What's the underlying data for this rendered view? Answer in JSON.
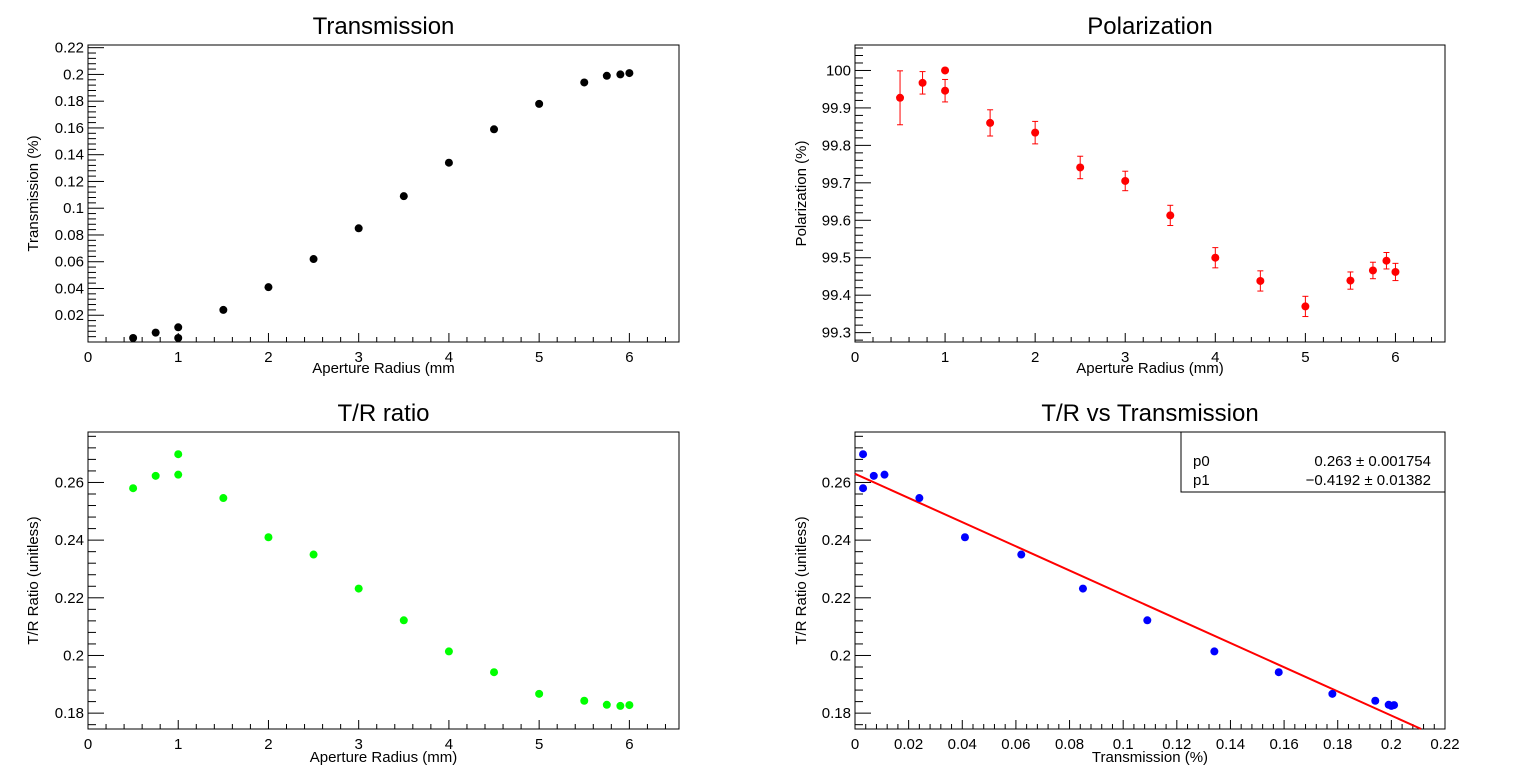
{
  "chart_data": [
    {
      "type": "scatter",
      "title": "Transmission",
      "xlabel": "Aperture Radius (mm",
      "ylabel": "Transmission (%)",
      "xlim": [
        0,
        6.55
      ],
      "ylim": [
        0.0,
        0.222
      ],
      "xticks": [
        "0",
        "1",
        "2",
        "3",
        "4",
        "5",
        "6"
      ],
      "yticks": [
        "0.02",
        "0.04",
        "0.06",
        "0.08",
        "0.1",
        "0.12",
        "0.14",
        "0.16",
        "0.18",
        "0.2",
        "0.22"
      ],
      "color": "#000000",
      "series": [
        {
          "x": [
            0.5,
            0.75,
            1.0,
            1.0,
            1.5,
            2.0,
            2.5,
            3.0,
            3.5,
            4.0,
            4.5,
            5.0,
            5.5,
            5.75,
            5.9,
            6.0
          ],
          "y": [
            0.003,
            0.007,
            0.003,
            0.011,
            0.024,
            0.041,
            0.062,
            0.085,
            0.109,
            0.134,
            0.159,
            0.178,
            0.194,
            0.199,
            0.2,
            0.201
          ]
        }
      ]
    },
    {
      "type": "scatter",
      "title": "Polarization",
      "xlabel": "Aperture Radius (mm)",
      "ylabel": "Polarization (%)",
      "xlim": [
        0,
        6.55
      ],
      "ylim": [
        99.275,
        100.068
      ],
      "xticks": [
        "0",
        "1",
        "2",
        "3",
        "4",
        "5",
        "6"
      ],
      "yticks": [
        "99.3",
        "99.4",
        "99.5",
        "99.6",
        "99.7",
        "99.8",
        "99.9",
        "100"
      ],
      "color": "#ff0000",
      "series": [
        {
          "x": [
            0.5,
            0.75,
            1.0,
            1.0,
            1.5,
            2.0,
            2.5,
            3.0,
            3.5,
            4.0,
            4.5,
            5.0,
            5.5,
            5.75,
            5.9,
            6.0
          ],
          "y": [
            99.927,
            99.967,
            99.946,
            100.0,
            99.86,
            99.834,
            99.741,
            99.705,
            99.613,
            99.5,
            99.438,
            99.37,
            99.439,
            99.466,
            99.492,
            99.462
          ],
          "err": [
            0.072,
            0.03,
            0.03,
            0.0,
            0.035,
            0.03,
            0.03,
            0.026,
            0.027,
            0.027,
            0.027,
            0.027,
            0.023,
            0.022,
            0.022,
            0.023
          ]
        }
      ]
    },
    {
      "type": "scatter",
      "title": "T/R ratio",
      "xlabel": "Aperture Radius (mm)",
      "ylabel": "T/R Ratio (unitless)",
      "xlim": [
        0,
        6.55
      ],
      "ylim": [
        0.1745,
        0.2775
      ],
      "xticks": [
        "0",
        "1",
        "2",
        "3",
        "4",
        "5",
        "6"
      ],
      "yticks": [
        "0.18",
        "0.2",
        "0.22",
        "0.24",
        "0.26"
      ],
      "color": "#00ff00",
      "series": [
        {
          "x": [
            0.5,
            0.75,
            1.0,
            1.0,
            1.5,
            2.0,
            2.5,
            3.0,
            3.5,
            4.0,
            4.5,
            5.0,
            5.5,
            5.75,
            5.9,
            6.0
          ],
          "y": [
            0.258,
            0.2623,
            0.2627,
            0.2698,
            0.2546,
            0.241,
            0.235,
            0.2232,
            0.2122,
            0.2014,
            0.1942,
            0.1867,
            0.1843,
            0.1829,
            0.1825,
            0.1828
          ]
        }
      ]
    },
    {
      "type": "scatter",
      "title": "T/R vs Transmission",
      "xlabel": "Transmission (%)",
      "ylabel": "T/R Ratio (unitless)",
      "xlim": [
        0,
        0.22
      ],
      "ylim": [
        0.1745,
        0.2775
      ],
      "xticks": [
        "0",
        "0.02",
        "0.04",
        "0.06",
        "0.08",
        "0.1",
        "0.12",
        "0.14",
        "0.16",
        "0.18",
        "0.2",
        "0.22"
      ],
      "yticks": [
        "0.18",
        "0.2",
        "0.22",
        "0.24",
        "0.26"
      ],
      "color": "#0000ff",
      "fit_color": "#ff0000",
      "series": [
        {
          "x": [
            0.003,
            0.003,
            0.007,
            0.011,
            0.024,
            0.041,
            0.062,
            0.085,
            0.109,
            0.134,
            0.158,
            0.178,
            0.194,
            0.199,
            0.2,
            0.201
          ],
          "y": [
            0.2698,
            0.258,
            0.2623,
            0.2627,
            0.2546,
            0.241,
            0.235,
            0.2232,
            0.2122,
            0.2014,
            0.1942,
            0.1867,
            0.1843,
            0.1829,
            0.1825,
            0.1828
          ]
        }
      ],
      "fit": {
        "p0": 0.263,
        "p1": -0.4192,
        "stats": [
          {
            "name": "p0",
            "value": "0.263 ± 0.001754"
          },
          {
            "name": "p1",
            "value": "−0.4192 ± 0.01382"
          }
        ]
      }
    }
  ]
}
